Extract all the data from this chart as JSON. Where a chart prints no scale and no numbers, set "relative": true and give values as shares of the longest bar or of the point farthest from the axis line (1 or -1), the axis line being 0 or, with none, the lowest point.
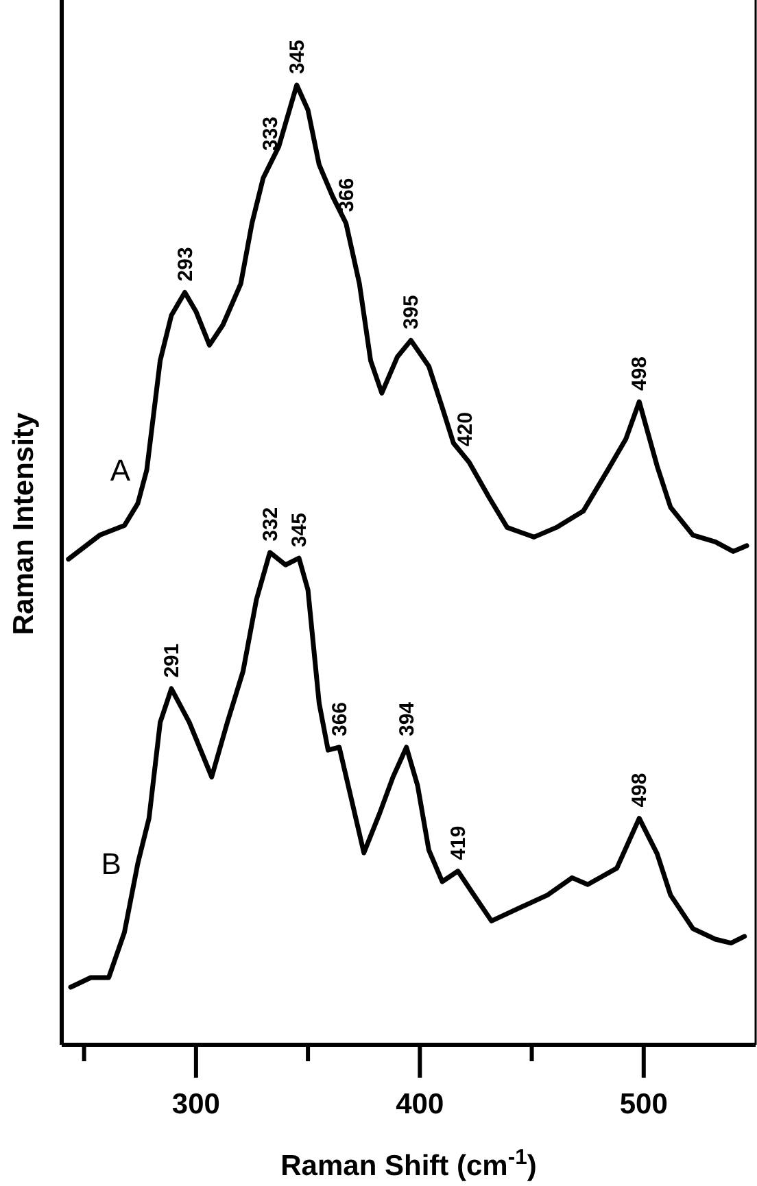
{
  "chart_data": {
    "type": "line",
    "relative": true,
    "xlabel": "Raman Shift (cm$^{-1}$)",
    "ylabel": "Raman Intensity",
    "xlim": [
      240,
      550
    ],
    "xticks": [
      {
        "value": 250,
        "label": null
      },
      300,
      {
        "value": 350,
        "label": null
      },
      400,
      {
        "value": 450,
        "label": null
      },
      500
    ],
    "tick_labels": "x",
    "legend": false,
    "marker": "none",
    "line_style": "solid",
    "series": [
      {
        "name": "A",
        "color": "#000000",
        "x": [
          243,
          257,
          268,
          274,
          278,
          284,
          289,
          295,
          300,
          306,
          312,
          320,
          325,
          330,
          337,
          345,
          350,
          355,
          361,
          367,
          373,
          378,
          383,
          390,
          396,
          404,
          410,
          415,
          422,
          431,
          439,
          451,
          461,
          473,
          484,
          492,
          498,
          506,
          512,
          522,
          532,
          540,
          546
        ],
        "values": [
          0.506,
          0.531,
          0.541,
          0.564,
          0.599,
          0.713,
          0.76,
          0.784,
          0.764,
          0.729,
          0.75,
          0.793,
          0.856,
          0.903,
          0.936,
          1.0,
          0.974,
          0.917,
          0.884,
          0.856,
          0.793,
          0.713,
          0.679,
          0.717,
          0.734,
          0.707,
          0.664,
          0.627,
          0.607,
          0.57,
          0.539,
          0.529,
          0.539,
          0.556,
          0.599,
          0.631,
          0.67,
          0.603,
          0.56,
          0.531,
          0.524,
          0.514,
          0.52
        ]
      },
      {
        "name": "B",
        "color": "#000000",
        "x": [
          244,
          253,
          261,
          268,
          274,
          279,
          284,
          289,
          297,
          307,
          314,
          321,
          327,
          333,
          340,
          346,
          350,
          355,
          359,
          364,
          369,
          375,
          382,
          388,
          394,
          399,
          404,
          410,
          417,
          423,
          432,
          443,
          457,
          468,
          475,
          488,
          498,
          506,
          512,
          522,
          532,
          539,
          545
        ],
        "values": [
          0.06,
          0.07,
          0.07,
          0.117,
          0.189,
          0.236,
          0.336,
          0.371,
          0.336,
          0.279,
          0.336,
          0.389,
          0.464,
          0.513,
          0.5,
          0.507,
          0.474,
          0.356,
          0.307,
          0.31,
          0.26,
          0.2,
          0.241,
          0.279,
          0.31,
          0.27,
          0.203,
          0.17,
          0.181,
          0.16,
          0.129,
          0.141,
          0.156,
          0.174,
          0.167,
          0.184,
          0.236,
          0.199,
          0.156,
          0.121,
          0.11,
          0.106,
          0.113
        ]
      }
    ],
    "annotations": [
      {
        "text": "293",
        "x": 295,
        "y": 0.784
      },
      {
        "text": "333",
        "x": 333,
        "y": 0.92
      },
      {
        "text": "345",
        "x": 345,
        "y": 1.0
      },
      {
        "text": "366",
        "x": 367,
        "y": 0.856
      },
      {
        "text": "395",
        "x": 396,
        "y": 0.734
      },
      {
        "text": "420",
        "x": 420,
        "y": 0.612
      },
      {
        "text": "498",
        "x": 498,
        "y": 0.67
      },
      {
        "text": "291",
        "x": 289,
        "y": 0.371
      },
      {
        "text": "332",
        "x": 333,
        "y": 0.513
      },
      {
        "text": "345",
        "x": 346,
        "y": 0.507
      },
      {
        "text": "366",
        "x": 364,
        "y": 0.31
      },
      {
        "text": "394",
        "x": 394,
        "y": 0.31
      },
      {
        "text": "419",
        "x": 417,
        "y": 0.181
      },
      {
        "text": "498",
        "x": 498,
        "y": 0.236
      }
    ]
  }
}
